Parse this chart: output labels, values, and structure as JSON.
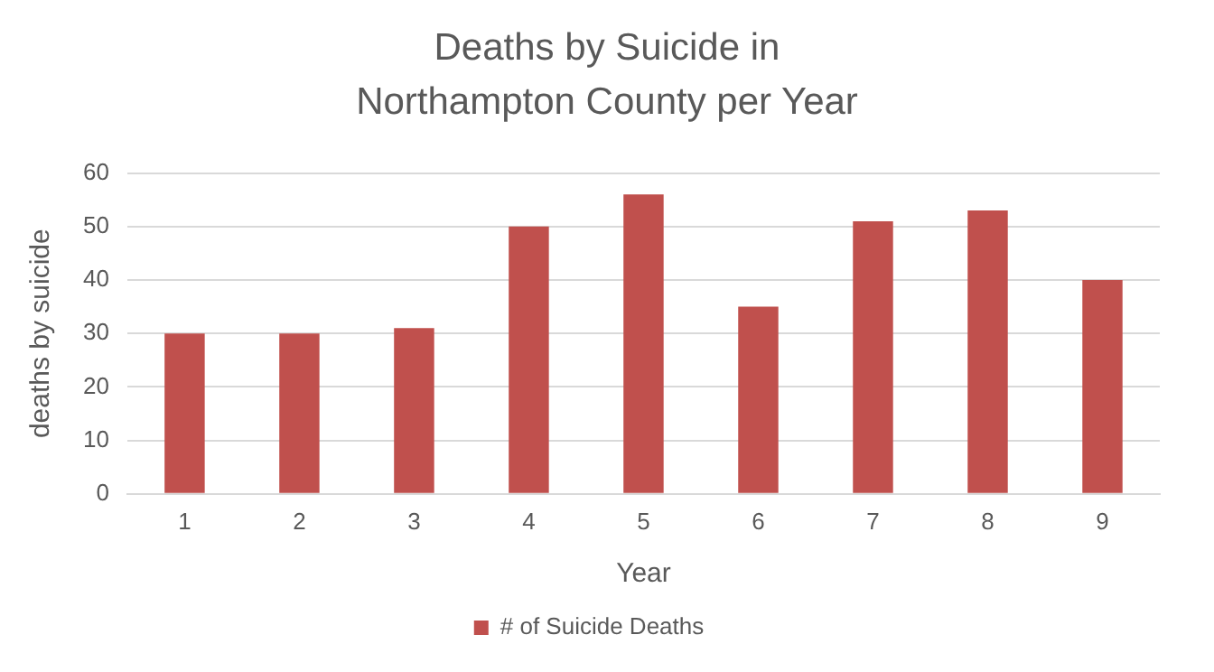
{
  "chart_data": {
    "type": "bar",
    "title": "Deaths by Suicide in Northampton County per Year",
    "xlabel": "Year",
    "ylabel": "deaths by suicide",
    "categories": [
      "1",
      "2",
      "3",
      "4",
      "5",
      "6",
      "7",
      "8",
      "9"
    ],
    "series": [
      {
        "name": "# of Suicide Deaths",
        "color": "#c0504d",
        "values": [
          30,
          30,
          31,
          50,
          56,
          35,
          51,
          53,
          40
        ]
      }
    ],
    "ylim": [
      0,
      60
    ],
    "yticks": [
      0,
      10,
      20,
      30,
      40,
      50,
      60
    ],
    "grid": "y",
    "legend": "bottom"
  }
}
